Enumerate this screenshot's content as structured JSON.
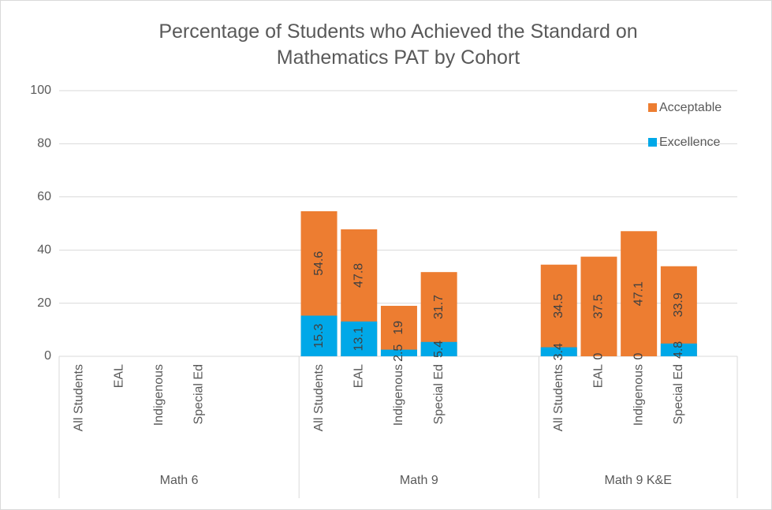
{
  "chart_data": {
    "type": "bar",
    "title": "Percentage of Students who Achieved the Standard on Mathematics PAT by Cohort",
    "groups": [
      {
        "name": "Math 6",
        "categories": [
          "All Students",
          "EAL",
          "Indigenous",
          "Special Ed"
        ]
      },
      {
        "name": "Math 9",
        "categories": [
          "All Students",
          "EAL",
          "Indigenous",
          "Special Ed"
        ]
      },
      {
        "name": "Math 9 K&E",
        "categories": [
          "All Students",
          "EAL",
          "Indigenous",
          "Special Ed"
        ]
      }
    ],
    "series": [
      {
        "name": "Acceptable",
        "color": "#ED7D31",
        "values": [
          null,
          null,
          null,
          null,
          54.6,
          47.8,
          19,
          31.7,
          34.5,
          37.5,
          47.1,
          33.9
        ]
      },
      {
        "name": "Excellence",
        "color": "#00A8E8",
        "values": [
          null,
          null,
          null,
          null,
          15.3,
          13.1,
          2.5,
          5.4,
          3.4,
          0,
          0,
          4.8
        ]
      }
    ],
    "overlap": true,
    "ylim": [
      0,
      100
    ],
    "yticks": [
      0,
      20,
      40,
      60,
      80,
      100
    ],
    "grid": true,
    "legend": "upper right"
  }
}
